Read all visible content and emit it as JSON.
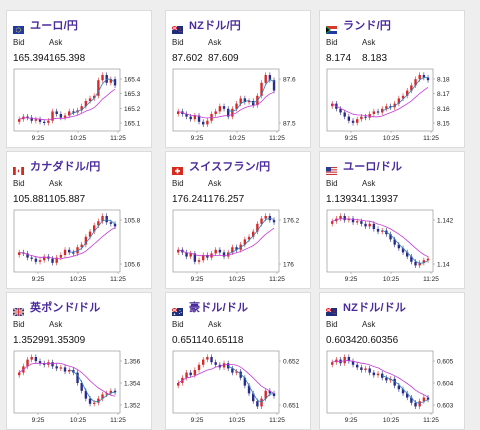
{
  "labels": {
    "bid": "Bid",
    "ask": "Ask"
  },
  "colors": {
    "title": "#4a2a9c",
    "up": "#d62a2a",
    "down": "#2a2a8a",
    "ma_short": "#2a7fbf",
    "ma_long": "#c43bd6"
  },
  "pairs": [
    {
      "name": "ユーロ/円",
      "flag": "eu",
      "bid": "165.394",
      "ask": "165.398",
      "y_ticks": [
        "165.4",
        "165.3",
        "165.2",
        "165.1"
      ],
      "x_ticks": [
        "9:25",
        "10:25",
        "11:25"
      ]
    },
    {
      "name": "NZドル/円",
      "flag": "nz",
      "bid": "87.602",
      "ask": "87.609",
      "y_ticks": [
        "87.6",
        "87.5"
      ],
      "x_ticks": [
        "9:25",
        "10:25",
        "11:25"
      ]
    },
    {
      "name": "ランド/円",
      "flag": "za",
      "bid": "8.174",
      "ask": "8.183",
      "y_ticks": [
        "8.18",
        "8.17",
        "8.16",
        "8.15"
      ],
      "x_ticks": [
        "9:25",
        "10:25",
        "11:25"
      ]
    },
    {
      "name": "カナダドル/円",
      "flag": "ca",
      "bid": "105.881",
      "ask": "105.887",
      "y_ticks": [
        "105.8",
        "105.6"
      ],
      "x_ticks": [
        "9:25",
        "10:25",
        "11:25"
      ]
    },
    {
      "name": "スイスフラン/円",
      "flag": "ch",
      "bid": "176.241",
      "ask": "176.257",
      "y_ticks": [
        "176.2",
        "176"
      ],
      "x_ticks": [
        "9:25",
        "10:25",
        "11:25"
      ]
    },
    {
      "name": "ユーロ/ドル",
      "flag": "us",
      "bid": "1.13934",
      "ask": "1.13937",
      "y_ticks": [
        "1.142",
        "1.14"
      ],
      "x_ticks": [
        "9:25",
        "10:25",
        "11:25"
      ]
    },
    {
      "name": "英ポンド/ドル",
      "flag": "gb",
      "bid": "1.35299",
      "ask": "1.35309",
      "y_ticks": [
        "1.356",
        "1.354",
        "1.352"
      ],
      "x_ticks": [
        "9:25",
        "10:25",
        "11:25"
      ]
    },
    {
      "name": "豪ドル/ドル",
      "flag": "au",
      "bid": "0.65114",
      "ask": "0.65118",
      "y_ticks": [
        "0.652",
        "0.651"
      ],
      "x_ticks": [
        "9:25",
        "10:25",
        "11:25"
      ]
    },
    {
      "name": "NZドル/ドル",
      "flag": "nz",
      "bid": "0.60342",
      "ask": "0.60356",
      "y_ticks": [
        "0.605",
        "0.604",
        "0.603"
      ],
      "x_ticks": [
        "9:25",
        "10:25",
        "11:25"
      ]
    }
  ]
}
